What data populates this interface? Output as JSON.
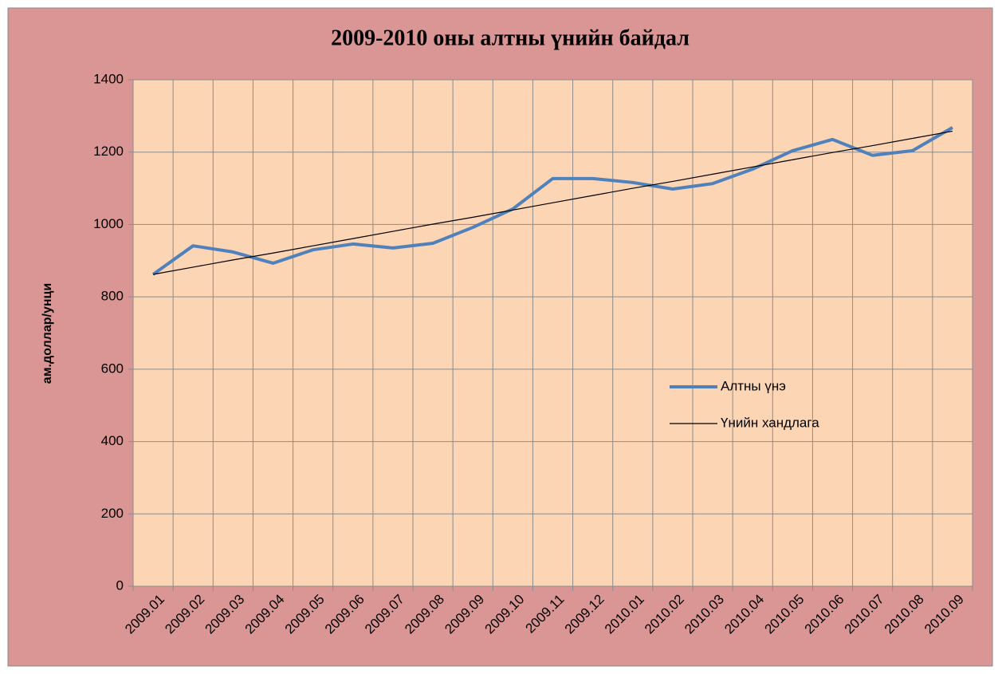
{
  "chart_data": {
    "type": "line",
    "title": "2009-2010 оны алтны үнийн байдал",
    "y_label": "ам.доллар/унци",
    "categories": [
      "2009.01",
      "2009.02",
      "2009.03",
      "2009.04",
      "2009.05",
      "2009.06",
      "2009.07",
      "2009.08",
      "2009.09",
      "2009.10",
      "2009.11",
      "2009.12",
      "2010.01",
      "2010.02",
      "2010.03",
      "2010.04",
      "2010.05",
      "2010.06",
      "2010.07",
      "2010.08",
      "2010.09"
    ],
    "series": [
      {
        "name": "Алтны үнэ",
        "color": "#4f81bd",
        "values": [
          862,
          941,
          924,
          893,
          930,
          946,
          935,
          948,
          992,
          1043,
          1127,
          1127,
          1116,
          1098,
          1113,
          1153,
          1204,
          1235,
          1191,
          1204,
          1268
        ]
      },
      {
        "name": "Үнийн хандлага",
        "color": "#000000",
        "values": [
          862,
          882,
          902,
          921,
          941,
          961,
          981,
          1001,
          1020,
          1040,
          1060,
          1080,
          1100,
          1119,
          1139,
          1159,
          1179,
          1199,
          1218,
          1238,
          1258
        ]
      }
    ],
    "ylim": [
      0,
      1400
    ],
    "yticks": [
      0,
      200,
      400,
      600,
      800,
      1000,
      1200,
      1400
    ],
    "grid": true,
    "legend": "right"
  }
}
